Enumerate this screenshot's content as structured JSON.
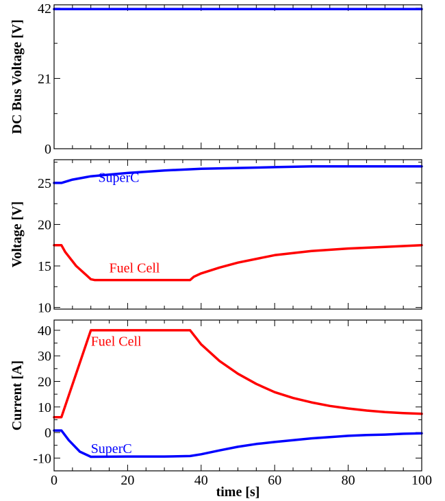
{
  "chart_data": [
    {
      "type": "line",
      "ylabel": "DC Bus Voltage [V]",
      "xlim": [
        0,
        100
      ],
      "ylim": [
        0,
        43
      ],
      "yticks": [
        0,
        21,
        42
      ],
      "ytick_labels": [
        "0",
        "21",
        "42"
      ],
      "grid": false,
      "annotations": [],
      "series": [
        {
          "color": "#0000ff",
          "x": [
            0,
            100
          ],
          "y": [
            41.7,
            41.7
          ]
        }
      ]
    },
    {
      "type": "line",
      "ylabel": "Voltage [V]",
      "xlim": [
        0,
        100
      ],
      "ylim": [
        9.8,
        27.8
      ],
      "yticks": [
        10,
        15,
        20,
        25
      ],
      "ytick_labels": [
        "10",
        "15",
        "20",
        "25"
      ],
      "grid": false,
      "annotations": [
        {
          "text": "SuperC",
          "x": 12,
          "y": 25.1,
          "color": "#0000ff"
        },
        {
          "text": "Fuel Cell",
          "x": 15,
          "y": 14.2,
          "color": "#ff0000"
        }
      ],
      "series": [
        {
          "name": "SuperC",
          "color": "#0000ff",
          "x": [
            0,
            2,
            5,
            10,
            15,
            20,
            30,
            40,
            50,
            60,
            70,
            80,
            90,
            100
          ],
          "y": [
            25.0,
            25.0,
            25.4,
            25.8,
            26.0,
            26.2,
            26.5,
            26.7,
            26.8,
            26.9,
            27.0,
            27.0,
            27.0,
            27.0
          ]
        },
        {
          "name": "Fuel Cell",
          "color": "#ff0000",
          "x": [
            0,
            2,
            3,
            6,
            10,
            11,
            20,
            30,
            37,
            38,
            40,
            45,
            50,
            60,
            70,
            80,
            90,
            100
          ],
          "y": [
            17.5,
            17.5,
            16.7,
            15.0,
            13.4,
            13.3,
            13.3,
            13.3,
            13.3,
            13.7,
            14.1,
            14.8,
            15.4,
            16.3,
            16.8,
            17.1,
            17.3,
            17.5
          ]
        }
      ]
    },
    {
      "type": "line",
      "ylabel": "Current [A]",
      "xlabel": "time [s]",
      "xlim": [
        0,
        100
      ],
      "ylim": [
        -15,
        44
      ],
      "xticks": [
        0,
        20,
        40,
        60,
        80,
        100
      ],
      "xtick_labels": [
        "0",
        "20",
        "40",
        "60",
        "80",
        "100"
      ],
      "yticks": [
        -10,
        0,
        10,
        20,
        30,
        40
      ],
      "ytick_labels": [
        "-10",
        "0",
        "10",
        "20",
        "30",
        "40"
      ],
      "grid": false,
      "annotations": [
        {
          "text": "Fuel Cell",
          "x": 10,
          "y": 34,
          "color": "#ff0000"
        },
        {
          "text": "SuperC",
          "x": 10,
          "y": -8,
          "color": "#0000ff"
        }
      ],
      "series": [
        {
          "name": "Fuel Cell",
          "color": "#ff0000",
          "x": [
            0,
            2,
            10,
            20,
            30,
            37,
            40,
            45,
            50,
            55,
            60,
            65,
            70,
            75,
            80,
            85,
            90,
            95,
            100
          ],
          "y": [
            6,
            6,
            40,
            40,
            40,
            40,
            34.5,
            28,
            23,
            19,
            15.8,
            13.5,
            11.8,
            10.4,
            9.4,
            8.6,
            8.0,
            7.6,
            7.3
          ]
        },
        {
          "name": "SuperC",
          "color": "#0000ff",
          "x": [
            0,
            2,
            4,
            7,
            10,
            20,
            30,
            37,
            40,
            45,
            50,
            55,
            60,
            65,
            70,
            75,
            80,
            85,
            90,
            95,
            100
          ],
          "y": [
            0.8,
            0.8,
            -3,
            -7.5,
            -9.5,
            -9.4,
            -9.4,
            -9.2,
            -8.5,
            -7,
            -5.6,
            -4.5,
            -3.7,
            -3,
            -2.3,
            -1.8,
            -1.3,
            -1,
            -0.8,
            -0.5,
            -0.3
          ]
        }
      ]
    }
  ]
}
